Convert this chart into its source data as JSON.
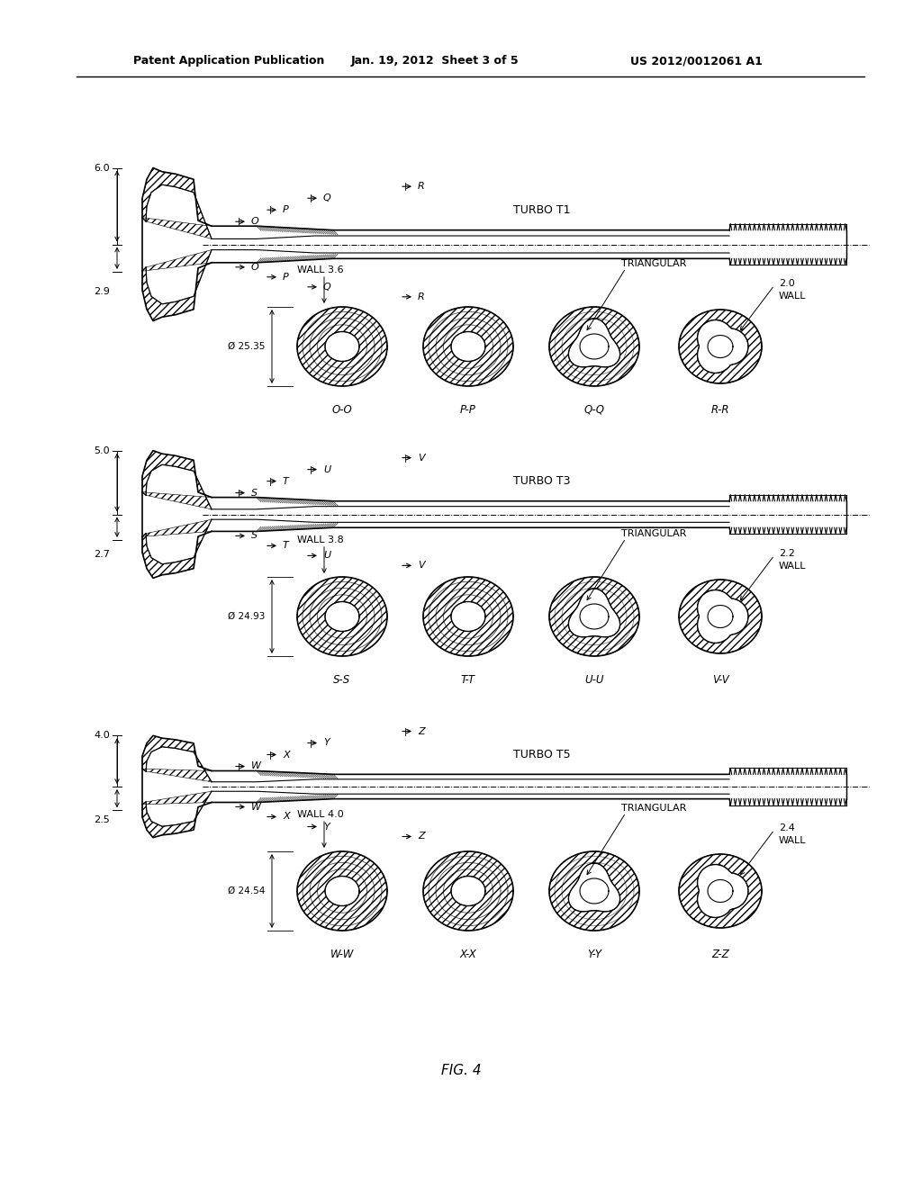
{
  "background_color": "#ffffff",
  "header_left": "Patent Application Publication",
  "header_center": "Jan. 19, 2012  Sheet 3 of 5",
  "header_right": "US 2012/0012061 A1",
  "figure_label": "FIG. 4",
  "sections": [
    {
      "label": "TURBO T1",
      "dim_top": "6.0",
      "dim_bottom": "2.9",
      "wall_label": "WALL 3.6",
      "diameter_label": "Ø 25.35",
      "wall_right": "2.0",
      "cuts": [
        "O-O",
        "P-P",
        "Q-Q",
        "R-R"
      ],
      "cut_letters": [
        "O",
        "P",
        "Q",
        "R"
      ],
      "triangular_label": "TRIANGULAR",
      "section_types": [
        "round_tri",
        "round_tri",
        "tri",
        "tri_open"
      ]
    },
    {
      "label": "TURBO T3",
      "dim_top": "5.0",
      "dim_bottom": "2.7",
      "wall_label": "WALL 3.8",
      "diameter_label": "Ø 24.93",
      "wall_right": "2.2",
      "cuts": [
        "S-S",
        "T-T",
        "U-U",
        "V-V"
      ],
      "cut_letters": [
        "S",
        "T",
        "U",
        "V"
      ],
      "triangular_label": "TRIANGULAR",
      "section_types": [
        "round_tri",
        "round_tri",
        "tri",
        "tri_open"
      ]
    },
    {
      "label": "TURBO T5",
      "dim_top": "4.0",
      "dim_bottom": "2.5",
      "wall_label": "WALL 4.0",
      "diameter_label": "Ø 24.54",
      "wall_right": "2.4",
      "cuts": [
        "W-W",
        "X-X",
        "Y-Y",
        "Z-Z"
      ],
      "cut_letters": [
        "W",
        "X",
        "Y",
        "Z"
      ],
      "triangular_label": "TRIANGULAR",
      "section_types": [
        "round_tri",
        "round_tri",
        "tri",
        "tri_open"
      ]
    }
  ]
}
